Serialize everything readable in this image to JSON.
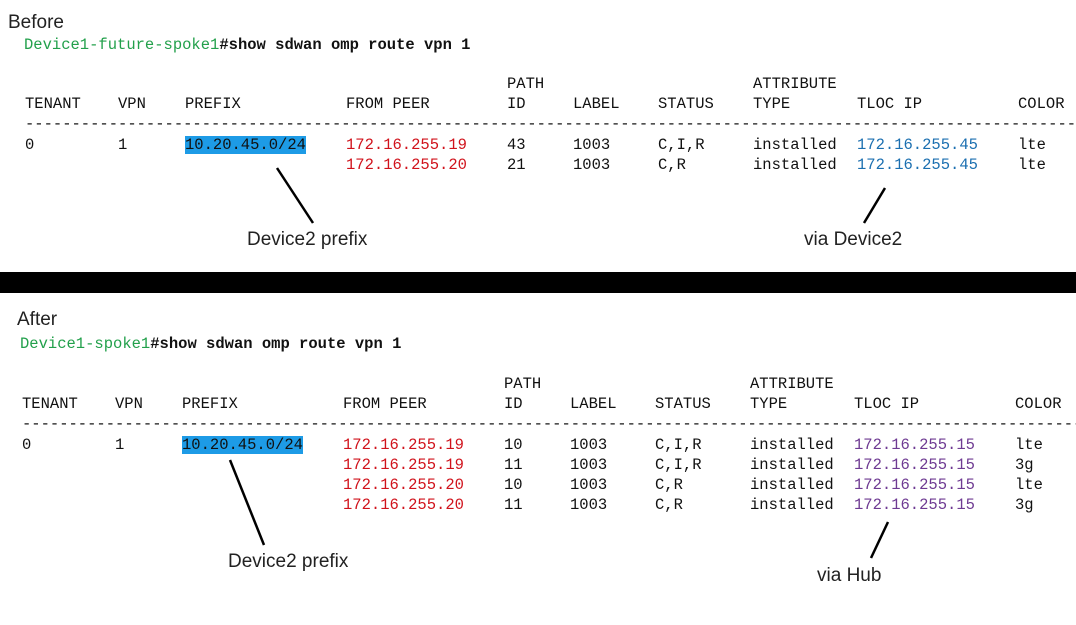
{
  "colors": {
    "host": "#22a04b",
    "peer": "#d0121b",
    "tloc_before": "#1b6fb0",
    "tloc_after": "#6e3a92",
    "prefix_highlight": "#1d9be6"
  },
  "before": {
    "heading": "Before",
    "host": "Device1-future-spoke1",
    "command": "#show sdwan omp route vpn 1",
    "headers_top": {
      "path": "PATH",
      "attribute": "ATTRIBUTE"
    },
    "headers": [
      "TENANT",
      "VPN",
      "PREFIX",
      "FROM PEER",
      "ID",
      "LABEL",
      "STATUS",
      "TYPE",
      "TLOC IP",
      "COLOR"
    ],
    "separator": "--------------------------------------------------------------------------------------------------------------------------------------",
    "rows": [
      [
        "0",
        "1",
        "10.20.45.0/24",
        "172.16.255.19",
        "43",
        "1003",
        "C,I,R",
        "installed",
        "172.16.255.45",
        "lte"
      ],
      [
        "",
        "",
        "",
        "172.16.255.20",
        "21",
        "1003",
        "C,R",
        "installed",
        "172.16.255.45",
        "lte"
      ]
    ],
    "annotation_prefix": "Device2 prefix",
    "annotation_tloc": "via Device2"
  },
  "after": {
    "heading": "After",
    "host": "Device1-spoke1",
    "command": "#show sdwan omp route vpn 1",
    "headers_top": {
      "path": "PATH",
      "attribute": "ATTRIBUTE"
    },
    "headers": [
      "TENANT",
      "VPN",
      "PREFIX",
      "FROM PEER",
      "ID",
      "LABEL",
      "STATUS",
      "TYPE",
      "TLOC IP",
      "COLOR"
    ],
    "separator": "--------------------------------------------------------------------------------------------------------------------------------------",
    "rows": [
      [
        "0",
        "1",
        "10.20.45.0/24",
        "172.16.255.19",
        "10",
        "1003",
        "C,I,R",
        "installed",
        "172.16.255.15",
        "lte"
      ],
      [
        "",
        "",
        "",
        "172.16.255.19",
        "11",
        "1003",
        "C,I,R",
        "installed",
        "172.16.255.15",
        "3g"
      ],
      [
        "",
        "",
        "",
        "172.16.255.20",
        "10",
        "1003",
        "C,R",
        "installed",
        "172.16.255.15",
        "lte"
      ],
      [
        "",
        "",
        "",
        "172.16.255.20",
        "11",
        "1003",
        "C,R",
        "installed",
        "172.16.255.15",
        "3g"
      ]
    ],
    "annotation_prefix": "Device2 prefix",
    "annotation_tloc": "via Hub"
  }
}
